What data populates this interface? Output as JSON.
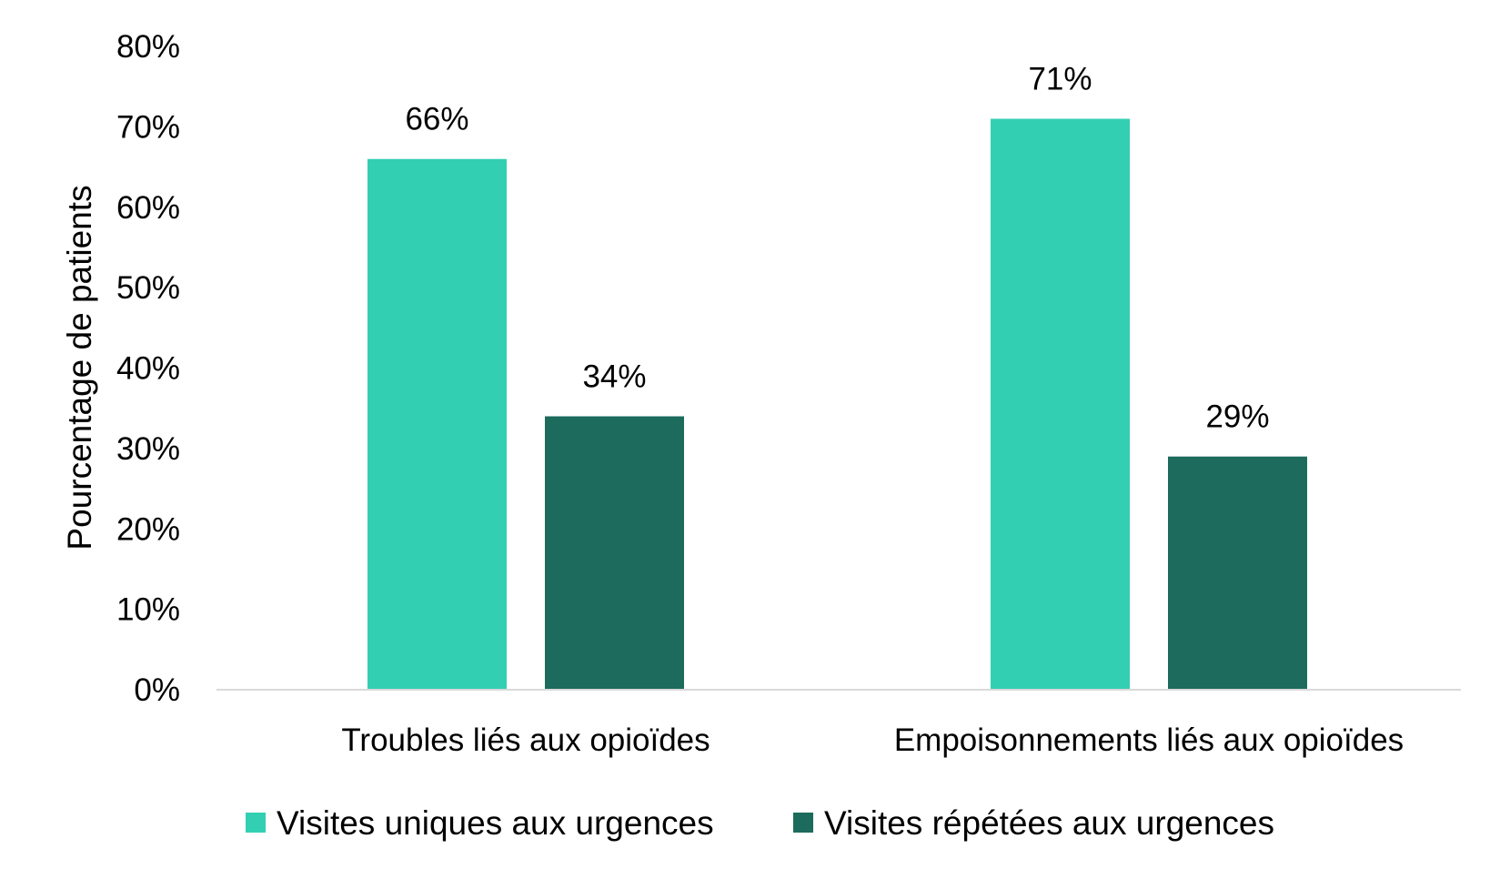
{
  "chart_data": {
    "type": "bar",
    "title": "",
    "xlabel": "",
    "ylabel": "Pourcentage de patients",
    "ylim": [
      0,
      80
    ],
    "yticks": [
      0,
      10,
      20,
      30,
      40,
      50,
      60,
      70,
      80
    ],
    "ytick_labels": [
      "0%",
      "10%",
      "20%",
      "30%",
      "40%",
      "50%",
      "60%",
      "70%",
      "80%"
    ],
    "categories": [
      "Troubles liés aux opioïdes",
      "Empoisonnements liés aux opioïdes"
    ],
    "series": [
      {
        "name": "Visites uniques aux urgences",
        "color": "#33CFB3",
        "values": [
          66,
          71
        ],
        "labels": [
          "66%",
          "71%"
        ]
      },
      {
        "name": "Visites répétées aux urgences",
        "color": "#1C6B5C",
        "values": [
          34,
          29
        ],
        "labels": [
          "34%",
          "29%"
        ]
      }
    ],
    "grid": false,
    "legend_position": "bottom",
    "axis_line_color": "#D9D9D9"
  }
}
